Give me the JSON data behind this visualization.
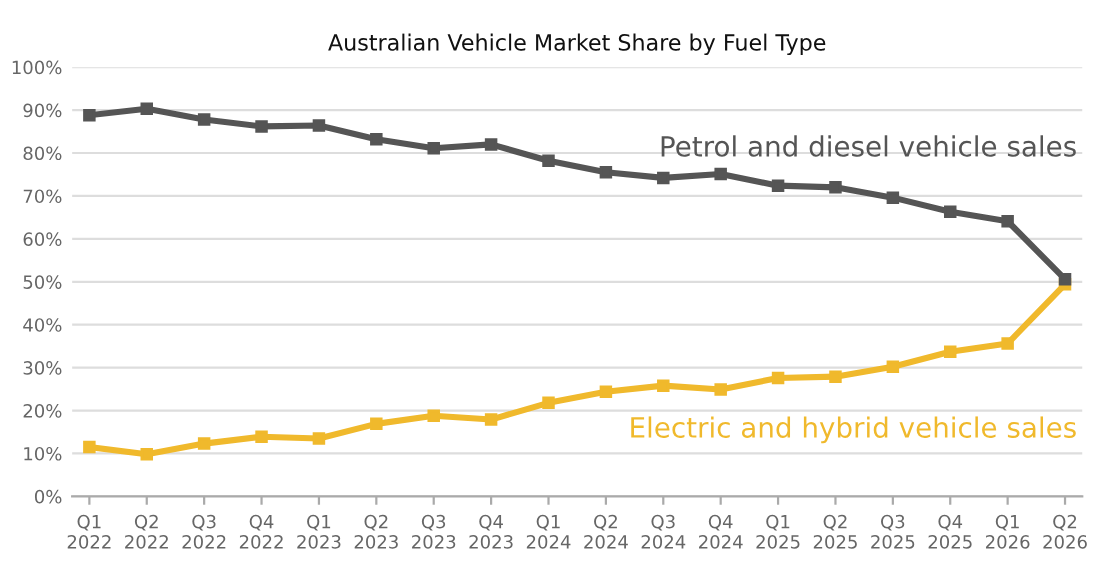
{
  "chart_data": {
    "type": "line",
    "title": "Australian Vehicle Market Share by Fuel Type",
    "categories": [
      "Q1\n2022",
      "Q2\n2022",
      "Q3\n2022",
      "Q4\n2022",
      "Q1\n2023",
      "Q2\n2023",
      "Q3\n2023",
      "Q4\n2023",
      "Q1\n2024",
      "Q2\n2024",
      "Q3\n2024",
      "Q4\n2024",
      "Q1\n2025",
      "Q2\n2025",
      "Q3\n2025",
      "Q4\n2025",
      "Q1\n2026",
      "Q2\n2026"
    ],
    "series": [
      {
        "name": "Petrol and diesel vehicle sales",
        "color": "#555555",
        "values": [
          88.8,
          90.3,
          87.8,
          86.2,
          86.4,
          83.2,
          81.1,
          82.0,
          78.2,
          75.5,
          74.2,
          75.1,
          72.4,
          72.0,
          69.6,
          66.3,
          64.1,
          50.6
        ]
      },
      {
        "name": "Electric and hybrid vehicle sales",
        "color": "#f0b92c",
        "values": [
          11.5,
          9.8,
          12.3,
          13.9,
          13.5,
          16.9,
          18.8,
          17.9,
          21.8,
          24.4,
          25.8,
          24.9,
          27.6,
          27.9,
          30.2,
          33.7,
          35.6,
          49.4
        ]
      }
    ],
    "ylim": [
      0,
      100
    ],
    "yticks": [
      {
        "value": 0,
        "label": "0%"
      },
      {
        "value": 10,
        "label": "10%"
      },
      {
        "value": 20,
        "label": "20%"
      },
      {
        "value": 30,
        "label": "30%"
      },
      {
        "value": 40,
        "label": "40%"
      },
      {
        "value": 50,
        "label": "50%"
      },
      {
        "value": 60,
        "label": "60%"
      },
      {
        "value": 70,
        "label": "70%"
      },
      {
        "value": 80,
        "label": "80%"
      },
      {
        "value": 90,
        "label": "90%"
      },
      {
        "value": 100,
        "label": "100%"
      }
    ],
    "grid": "y",
    "marker": "square",
    "line_style": "solid",
    "legend": false
  }
}
